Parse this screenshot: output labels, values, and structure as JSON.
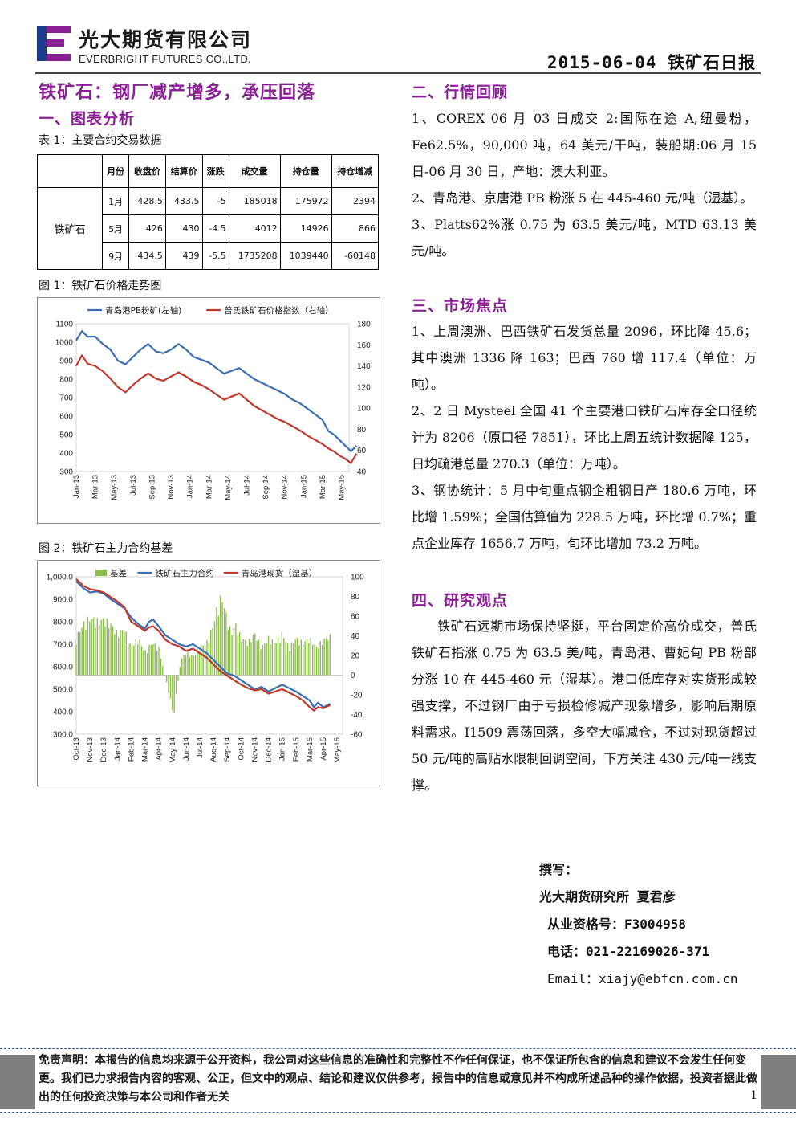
{
  "header": {
    "company_cn": "光大期货有限公司",
    "company_en": "EVERBRIGHT FUTURES CO.,LTD.",
    "report_date_title": "2015-06-04 铁矿石日报",
    "logo_colors": [
      "#1a3e8c",
      "#8a1f96"
    ]
  },
  "left": {
    "main_title": "铁矿石：钢厂减产增多，承压回落",
    "section1": "一、图表分析",
    "table_caption": "表 1：主要合约交易数据",
    "table": {
      "headers": [
        "月份",
        "收盘价",
        "结算价",
        "涨跌",
        "成交量",
        "持仓量",
        "持仓增减"
      ],
      "product": "铁矿石",
      "rows": [
        [
          "1月",
          "428.5",
          "433.5",
          "-5",
          "185018",
          "175972",
          "2394"
        ],
        [
          "5月",
          "426",
          "430",
          "-4.5",
          "4012",
          "14926",
          "866"
        ],
        [
          "9月",
          "434.5",
          "439",
          "-5.5",
          "1735208",
          "1039440",
          "-60148"
        ]
      ]
    },
    "fig1_caption": "图 1：铁矿石价格走势图",
    "fig2_caption": "图 2：铁矿石主力合约基差"
  },
  "chart_data": [
    {
      "type": "line",
      "title": "",
      "legend_position": "top",
      "x_ticks": [
        "Jan-13",
        "Mar-13",
        "May-13",
        "Jul-13",
        "Sep-13",
        "Nov-13",
        "Jan-14",
        "Mar-14",
        "May-14",
        "Jul-14",
        "Sep-14",
        "Nov-14",
        "Jan-15",
        "Mar-15",
        "May-15"
      ],
      "left_axis": {
        "range": [
          300,
          1100
        ],
        "ticks": [
          "300",
          "400",
          "500",
          "600",
          "700",
          "800",
          "900",
          "1000",
          "1100"
        ]
      },
      "right_axis": {
        "range": [
          40,
          180
        ],
        "ticks": [
          "40",
          "60",
          "80",
          "100",
          "120",
          "140",
          "160",
          "180"
        ]
      },
      "series": [
        {
          "name": "青岛港PB粉矿(左轴)",
          "axis": "left",
          "color": "#3a6fb5",
          "points": [
            [
              0,
              1010
            ],
            [
              0.3,
              1060
            ],
            [
              0.6,
              1030
            ],
            [
              1,
              1030
            ],
            [
              1.4,
              990
            ],
            [
              1.8,
              960
            ],
            [
              2.2,
              900
            ],
            [
              2.6,
              880
            ],
            [
              3,
              920
            ],
            [
              3.4,
              960
            ],
            [
              3.8,
              990
            ],
            [
              4.2,
              950
            ],
            [
              4.6,
              940
            ],
            [
              5,
              960
            ],
            [
              5.4,
              990
            ],
            [
              5.8,
              960
            ],
            [
              6.2,
              920
            ],
            [
              6.6,
              905
            ],
            [
              7,
              890
            ],
            [
              7.4,
              860
            ],
            [
              7.8,
              830
            ],
            [
              8.2,
              845
            ],
            [
              8.6,
              860
            ],
            [
              9,
              830
            ],
            [
              9.4,
              800
            ],
            [
              9.8,
              780
            ],
            [
              10.2,
              760
            ],
            [
              10.6,
              740
            ],
            [
              11,
              720
            ],
            [
              11.4,
              690
            ],
            [
              11.8,
              670
            ],
            [
              12.2,
              640
            ],
            [
              12.6,
              610
            ],
            [
              13,
              580
            ],
            [
              13.3,
              520
            ],
            [
              13.6,
              500
            ],
            [
              13.9,
              470
            ],
            [
              14.2,
              440
            ],
            [
              14.5,
              410
            ],
            [
              14.8,
              440
            ]
          ]
        },
        {
          "name": "普氏铁矿石价格指数（右轴）",
          "axis": "right",
          "color": "#c0392b",
          "points": [
            [
              0,
              140
            ],
            [
              0.3,
              150
            ],
            [
              0.6,
              142
            ],
            [
              1,
              140
            ],
            [
              1.4,
              135
            ],
            [
              1.8,
              128
            ],
            [
              2.2,
              120
            ],
            [
              2.6,
              115
            ],
            [
              3,
              122
            ],
            [
              3.4,
              128
            ],
            [
              3.8,
              133
            ],
            [
              4.2,
              128
            ],
            [
              4.6,
              126
            ],
            [
              5,
              130
            ],
            [
              5.4,
              134
            ],
            [
              5.8,
              130
            ],
            [
              6.2,
              125
            ],
            [
              6.6,
              122
            ],
            [
              7,
              118
            ],
            [
              7.4,
              113
            ],
            [
              7.8,
              108
            ],
            [
              8.2,
              111
            ],
            [
              8.6,
              114
            ],
            [
              9,
              108
            ],
            [
              9.4,
              102
            ],
            [
              9.8,
              98
            ],
            [
              10.2,
              94
            ],
            [
              10.6,
              90
            ],
            [
              11,
              87
            ],
            [
              11.4,
              83
            ],
            [
              11.8,
              79
            ],
            [
              12.2,
              74
            ],
            [
              12.6,
              70
            ],
            [
              13,
              66
            ],
            [
              13.3,
              62
            ],
            [
              13.6,
              59
            ],
            [
              13.9,
              55
            ],
            [
              14.2,
              52
            ],
            [
              14.5,
              48
            ],
            [
              14.8,
              57
            ]
          ]
        }
      ]
    },
    {
      "type": "bar+line",
      "title": "",
      "legend_position": "top",
      "x_ticks": [
        "Oct-13",
        "Nov-13",
        "Dec-13",
        "Jan-14",
        "Feb-14",
        "Mar-14",
        "Apr-14",
        "May-14",
        "Jun-14",
        "Jul-14",
        "Aug-14",
        "Sep-14",
        "Oct-14",
        "Nov-14",
        "Dec-14",
        "Jan-15",
        "Feb-15",
        "Mar-15",
        "Apr-15",
        "May-15"
      ],
      "left_axis": {
        "range": [
          300,
          1000
        ],
        "ticks": [
          "300.0",
          "400.0",
          "500.0",
          "600.0",
          "700.0",
          "800.0",
          "900.0",
          "1,000.0"
        ]
      },
      "right_axis": {
        "range": [
          -60,
          100
        ],
        "ticks": [
          "-60",
          "-40",
          "-20",
          "0",
          "20",
          "40",
          "60",
          "80",
          "100"
        ]
      },
      "series": [
        {
          "name": "基差",
          "axis": "right",
          "kind": "bar",
          "color": "#8cbf4a",
          "points": [
            [
              0,
              40
            ],
            [
              0.5,
              55
            ],
            [
              1,
              62
            ],
            [
              1.5,
              58
            ],
            [
              2,
              60
            ],
            [
              2.5,
              55
            ],
            [
              3,
              45
            ],
            [
              3.5,
              50
            ],
            [
              4,
              30
            ],
            [
              4.5,
              40
            ],
            [
              5,
              25
            ],
            [
              5.5,
              35
            ],
            [
              6,
              30
            ],
            [
              6.3,
              10
            ],
            [
              6.6,
              -10
            ],
            [
              6.9,
              -30
            ],
            [
              7.1,
              -45
            ],
            [
              7.3,
              -20
            ],
            [
              7.6,
              15
            ],
            [
              8,
              25
            ],
            [
              8.5,
              20
            ],
            [
              9,
              30
            ],
            [
              9.5,
              35
            ],
            [
              10,
              55
            ],
            [
              10.3,
              75
            ],
            [
              10.6,
              85
            ],
            [
              11,
              60
            ],
            [
              11.3,
              45
            ],
            [
              11.6,
              55
            ],
            [
              12,
              40
            ],
            [
              12.5,
              35
            ],
            [
              13,
              45
            ],
            [
              13.5,
              30
            ],
            [
              14,
              40
            ],
            [
              14.5,
              35
            ],
            [
              15,
              45
            ],
            [
              15.5,
              30
            ],
            [
              16,
              40
            ],
            [
              16.5,
              35
            ],
            [
              17,
              40
            ],
            [
              17.5,
              30
            ],
            [
              18,
              38
            ],
            [
              18.5,
              42
            ]
          ]
        },
        {
          "name": "铁矿石主力合约",
          "axis": "left",
          "kind": "line",
          "color": "#3a6fb5",
          "points": [
            [
              0,
              980
            ],
            [
              0.5,
              950
            ],
            [
              1,
              930
            ],
            [
              1.5,
              935
            ],
            [
              2,
              925
            ],
            [
              2.5,
              900
            ],
            [
              3,
              880
            ],
            [
              3.5,
              860
            ],
            [
              4,
              820
            ],
            [
              4.5,
              790
            ],
            [
              5,
              770
            ],
            [
              5.3,
              800
            ],
            [
              5.6,
              810
            ],
            [
              6,
              780
            ],
            [
              6.5,
              740
            ],
            [
              7,
              720
            ],
            [
              7.5,
              700
            ],
            [
              8,
              690
            ],
            [
              8.5,
              700
            ],
            [
              9,
              680
            ],
            [
              9.5,
              660
            ],
            [
              10,
              630
            ],
            [
              10.5,
              600
            ],
            [
              11,
              570
            ],
            [
              11.5,
              560
            ],
            [
              12,
              540
            ],
            [
              12.5,
              520
            ],
            [
              13,
              500
            ],
            [
              13.5,
              510
            ],
            [
              14,
              490
            ],
            [
              14.5,
              505
            ],
            [
              15,
              520
            ],
            [
              15.5,
              505
            ],
            [
              16,
              490
            ],
            [
              16.5,
              470
            ],
            [
              17,
              450
            ],
            [
              17.3,
              420
            ],
            [
              17.6,
              440
            ],
            [
              18,
              420
            ],
            [
              18.5,
              435
            ]
          ]
        },
        {
          "name": "青岛港现货（湿基）",
          "axis": "left",
          "kind": "line",
          "color": "#c0392b",
          "points": [
            [
              0,
              990
            ],
            [
              0.5,
              960
            ],
            [
              1,
              945
            ],
            [
              1.5,
              940
            ],
            [
              2,
              930
            ],
            [
              2.5,
              910
            ],
            [
              3,
              890
            ],
            [
              3.5,
              865
            ],
            [
              4,
              800
            ],
            [
              4.5,
              780
            ],
            [
              5,
              760
            ],
            [
              5.3,
              775
            ],
            [
              5.6,
              780
            ],
            [
              6,
              760
            ],
            [
              6.5,
              720
            ],
            [
              7,
              700
            ],
            [
              7.5,
              690
            ],
            [
              8,
              670
            ],
            [
              8.5,
              680
            ],
            [
              9,
              660
            ],
            [
              9.5,
              640
            ],
            [
              10,
              610
            ],
            [
              10.5,
              580
            ],
            [
              11,
              560
            ],
            [
              11.5,
              540
            ],
            [
              12,
              520
            ],
            [
              12.5,
              505
            ],
            [
              13,
              495
            ],
            [
              13.5,
              500
            ],
            [
              14,
              480
            ],
            [
              14.5,
              490
            ],
            [
              15,
              500
            ],
            [
              15.5,
              485
            ],
            [
              16,
              470
            ],
            [
              16.5,
              450
            ],
            [
              17,
              420
            ],
            [
              17.3,
              405
            ],
            [
              17.6,
              420
            ],
            [
              18,
              415
            ],
            [
              18.5,
              430
            ]
          ]
        }
      ]
    }
  ],
  "right": {
    "section2": "二、行情回顾",
    "review": [
      "1、COREX 06 月 03 日成交 2:国际在途 A,纽曼粉，Fe62.5%，90,000 吨，64 美元/干吨，装船期:06 月 15 日-06 月 30 日，产地：澳大利亚。",
      "2、青岛港、京唐港 PB 粉涨 5 在 445-460 元/吨（湿基）。",
      "3、Platts62%涨 0.75 为 63.5 美元/吨，MTD 63.13 美元/吨。"
    ],
    "section3": "三、市场焦点",
    "focus": [
      "1、上周澳洲、巴西铁矿石发货总量 2096，环比降 45.6；其中澳洲 1336 降 163；巴西 760 增 117.4（单位：万吨）。",
      "2、2 日 Mysteel 全国 41 个主要港口铁矿石库存全口径统计为 8206（原口径 7851），环比上周五统计数据降 125，日均疏港总量 270.3（单位：万吨）。",
      "3、钢协统计：5 月中旬重点钢企粗钢日产 180.6 万吨，环比增 1.59%；全国估算值为 228.5 万吨，环比增 0.7%；重点企业库存 1656.7 万吨，旬环比增加 73.2 万吨。"
    ],
    "section4": "四、研究观点",
    "view": "铁矿石远期市场保持坚挺，平台固定价高价成交，普氏铁矿石指涨 0.75 为 63.5 美/吨，青岛港、曹妃甸 PB 粉部分涨 10 在 445-460 元（湿基）。港口低库存对实货形成较强支撑，不过钢厂由于亏损检修减产现象增多，影响后期原料需求。I1509 震荡回落，多空大幅减仓，不过对现货超过 50 元/吨的高贴水限制回调空间，下方关注 430 元/吨一线支撑。"
  },
  "author": {
    "label": "撰写：",
    "org_name": "光大期货研究所 夏君彦",
    "license": "从业资格号：F3004958",
    "phone": "电话：021-22169026-371",
    "email": "Email：xiajy@ebfcn.com.cn"
  },
  "footer": {
    "disclaimer": "免责声明：本报告的信息均来源于公开资料，我公司对这些信息的准确性和完整性不作任何保证，也不保证所包含的信息和建议不会发生任何变更。我们已力求报告内容的客观、公正，但文中的观点、结论和建议仅供参考，报告中的信息或意见并不构成所述品种的操作依据，投资者据此做出的任何投资决策与本公司和作者无关",
    "page_number": "1"
  }
}
